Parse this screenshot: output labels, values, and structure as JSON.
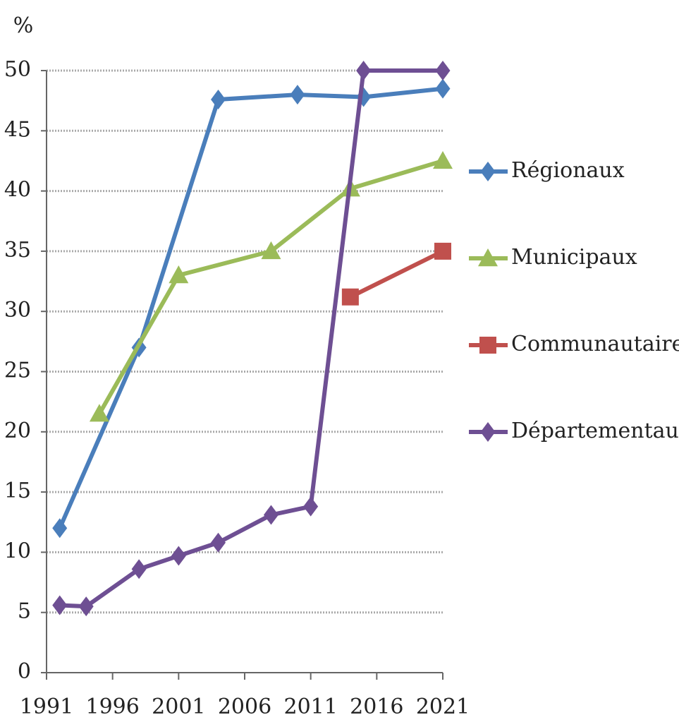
{
  "chart_data": {
    "type": "line",
    "y_label": "%",
    "xlim": [
      1991,
      2021
    ],
    "xticks": [
      1991,
      1996,
      2001,
      2006,
      2011,
      2016,
      2021
    ],
    "ylim": [
      0,
      50
    ],
    "yticks": [
      0,
      5,
      10,
      15,
      20,
      25,
      30,
      35,
      40,
      45,
      50
    ],
    "grid": true,
    "legend": "right",
    "series": [
      {
        "name": "Régionaux",
        "color": "#4a7ebb",
        "marker": "diamond",
        "x": [
          1992,
          1998,
          2004,
          2010,
          2015,
          2021
        ],
        "values": [
          12,
          27,
          47.6,
          48,
          47.8,
          48.5
        ]
      },
      {
        "name": "Municipaux",
        "color": "#9bbb59",
        "marker": "triangle",
        "x": [
          1995,
          2001,
          2008,
          2014,
          2021
        ],
        "values": [
          21.5,
          33,
          35,
          40.2,
          42.5
        ]
      },
      {
        "name": "Communautaires",
        "color": "#c0504d",
        "marker": "square",
        "x": [
          2014,
          2021
        ],
        "values": [
          31.2,
          35
        ]
      },
      {
        "name": "Départementaux",
        "color": "#6e4f93",
        "marker": "diamond",
        "x": [
          1992,
          1994,
          1998,
          2001,
          2004,
          2008,
          2011,
          2015,
          2021
        ],
        "values": [
          5.6,
          5.5,
          8.6,
          9.7,
          10.8,
          13.1,
          13.8,
          50,
          50
        ]
      }
    ]
  }
}
